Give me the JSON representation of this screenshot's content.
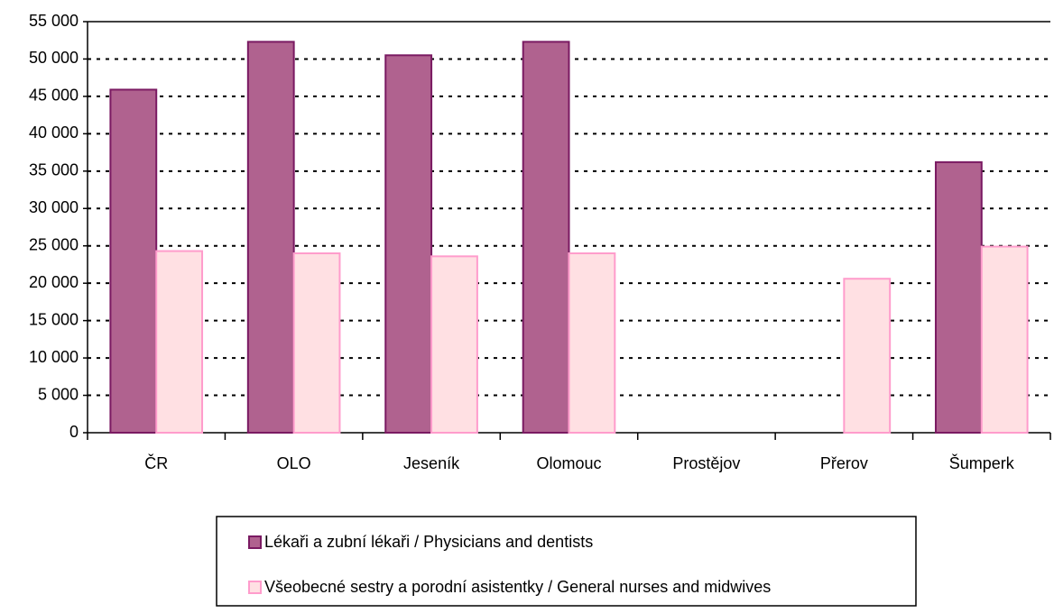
{
  "chart_data": {
    "type": "bar",
    "categories": [
      "ČR",
      "OLO",
      "Jeseník",
      "Olomouc",
      "Prostějov",
      "Přerov",
      "Šumperk"
    ],
    "series": [
      {
        "name": "Lékaři a zubní lékaři / Physicians and dentists",
        "color": "#b0628f",
        "values": [
          45900,
          52300,
          50500,
          52300,
          null,
          null,
          36200
        ]
      },
      {
        "name": "Všeobecné sestry a porodní asistentky / General nurses and midwives",
        "color": "#ffe0e3",
        "values": [
          24300,
          24000,
          23600,
          24000,
          null,
          20600,
          24900
        ]
      }
    ],
    "ylim": [
      0,
      55000
    ],
    "yticks": [
      0,
      {
        "value": 5000,
        "label": "5 000"
      },
      {
        "value": 10000,
        "label": "10 000"
      },
      {
        "value": 15000,
        "label": "15 000"
      },
      {
        "value": 20000,
        "label": "20 000"
      },
      {
        "value": 25000,
        "label": "25 000"
      },
      {
        "value": 30000,
        "label": "30 000"
      },
      {
        "value": 35000,
        "label": "35 000"
      },
      {
        "value": 40000,
        "label": "40 000"
      },
      {
        "value": 45000,
        "label": "45 000"
      },
      {
        "value": 50000,
        "label": "50 000"
      },
      {
        "value": 55000,
        "label": "55 000"
      }
    ],
    "grid": true,
    "legend": "bottom"
  }
}
